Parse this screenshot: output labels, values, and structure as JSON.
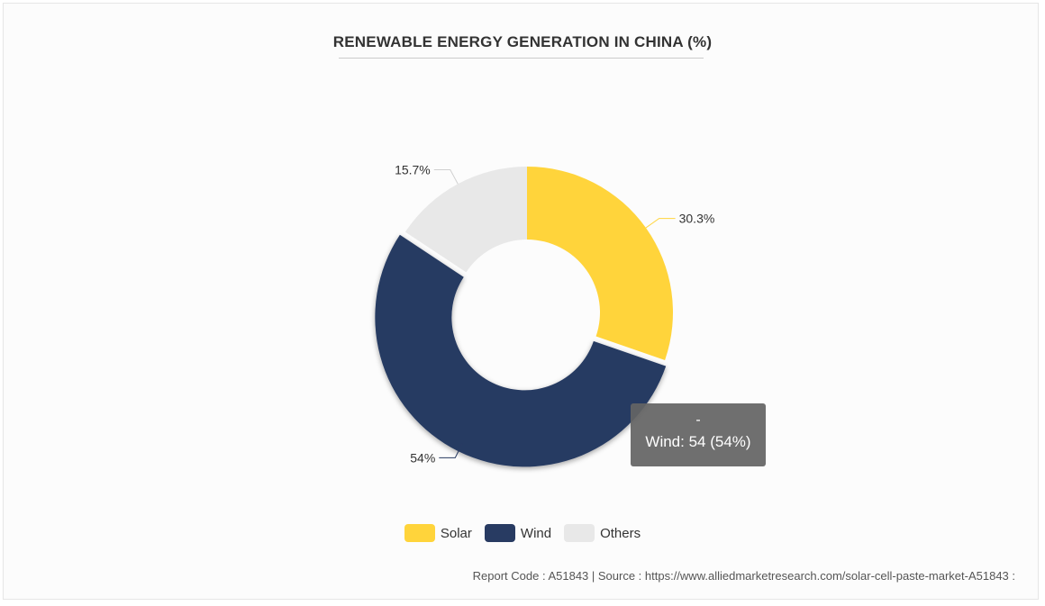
{
  "chart_data": {
    "type": "pie",
    "donut": true,
    "title": "RENEWABLE ENERGY GENERATION IN CHINA (%)",
    "categories": [
      "Solar",
      "Wind",
      "Others"
    ],
    "values": [
      30.3,
      54,
      15.7
    ],
    "labels": [
      "30.3%",
      "54%",
      "15.7%"
    ],
    "colors": [
      "#FFD43B",
      "#283B62",
      "#E8E8E8"
    ],
    "legend": {
      "position": "bottom",
      "items": [
        "Solar",
        "Wind",
        "Others"
      ]
    },
    "highlighted": "Wind",
    "tooltip": {
      "header": "-",
      "text": "Wind: 54 (54%)"
    }
  },
  "footer": {
    "text": "Report Code : A51843  |  Source : https://www.alliedmarketresearch.com/solar-cell-paste-market-A51843 :"
  }
}
